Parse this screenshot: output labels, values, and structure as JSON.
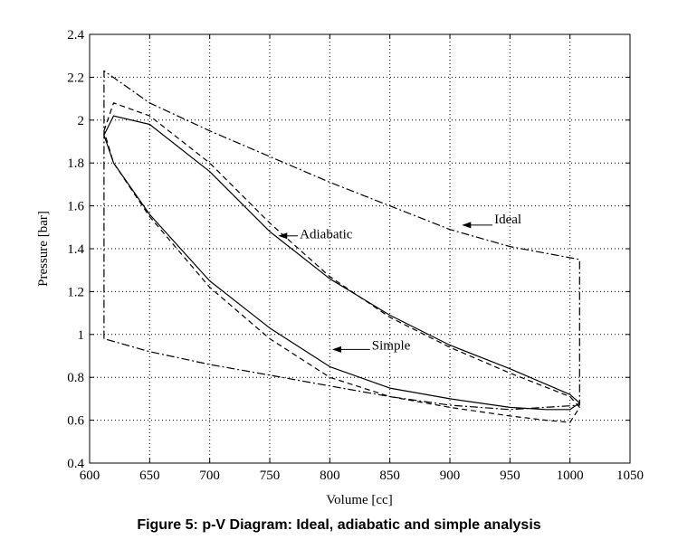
{
  "caption": "Figure 5: p-V Diagram: Ideal, adiabatic and simple analysis",
  "chart_data": {
    "type": "line",
    "xlabel": "Volume [cc]",
    "ylabel": "Pressure [bar]",
    "xlim": [
      600,
      1050
    ],
    "ylim": [
      0.4,
      2.4
    ],
    "xticks": [
      600,
      650,
      700,
      750,
      800,
      850,
      900,
      950,
      1000,
      1050
    ],
    "yticks": [
      0.4,
      0.6,
      0.8,
      1,
      1.2,
      1.4,
      1.6,
      1.8,
      2,
      2.2,
      2.4
    ],
    "grid": true,
    "series": [
      {
        "name": "Ideal",
        "style": "dash-dot",
        "x": [
          612,
          612,
          650,
          700,
          750,
          800,
          850,
          900,
          950,
          1008,
          1008,
          950,
          900,
          850,
          800,
          750,
          700,
          650,
          612
        ],
        "y": [
          0.98,
          2.23,
          2.08,
          1.95,
          1.83,
          1.71,
          1.6,
          1.49,
          1.41,
          1.35,
          0.67,
          0.65,
          0.67,
          0.71,
          0.76,
          0.81,
          0.86,
          0.92,
          0.98
        ]
      },
      {
        "name": "Adiabatic",
        "style": "dashed",
        "x": [
          612,
          620,
          650,
          700,
          750,
          800,
          850,
          900,
          950,
          1000,
          1008,
          1000,
          980,
          950,
          900,
          850,
          800,
          750,
          700,
          650,
          620,
          612
        ],
        "y": [
          1.95,
          2.08,
          2.02,
          1.8,
          1.52,
          1.27,
          1.08,
          0.94,
          0.82,
          0.71,
          0.66,
          0.59,
          0.6,
          0.62,
          0.66,
          0.71,
          0.8,
          0.98,
          1.22,
          1.55,
          1.8,
          1.95
        ]
      },
      {
        "name": "Simple",
        "style": "solid",
        "x": [
          612,
          620,
          650,
          700,
          750,
          800,
          850,
          900,
          950,
          1000,
          1008,
          1000,
          980,
          950,
          900,
          850,
          800,
          750,
          700,
          650,
          620,
          612
        ],
        "y": [
          1.93,
          2.02,
          1.98,
          1.76,
          1.48,
          1.26,
          1.09,
          0.95,
          0.84,
          0.72,
          0.68,
          0.65,
          0.65,
          0.66,
          0.7,
          0.75,
          0.85,
          1.03,
          1.25,
          1.56,
          1.8,
          1.93
        ]
      }
    ],
    "annotations": [
      {
        "text": "Ideal",
        "x_text": 937,
        "y_text": 1.54,
        "x_arrow": 910,
        "y_arrow": 1.51
      },
      {
        "text": "Adiabatic",
        "x_text": 775,
        "y_text": 1.47,
        "x_arrow": 757,
        "y_arrow": 1.46
      },
      {
        "text": "Simple",
        "x_text": 835,
        "y_text": 0.95,
        "x_arrow": 802,
        "y_arrow": 0.93
      }
    ]
  }
}
